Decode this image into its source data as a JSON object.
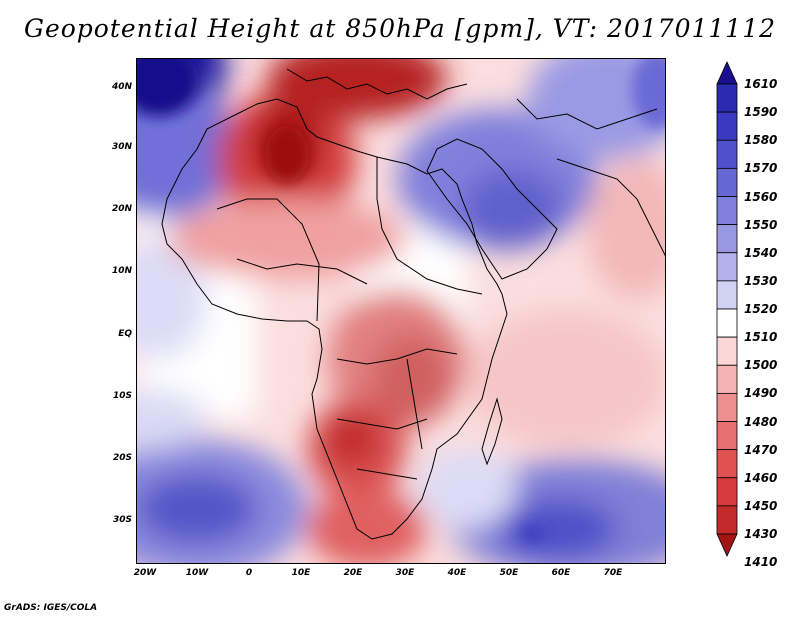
{
  "title": "Geopotential Height at 850hPa [gpm], VT: 2017011112",
  "credit": "GrADS: IGES/COLA",
  "lat_labels": [
    "40N",
    "30N",
    "20N",
    "10N",
    "EQ",
    "10S",
    "20S",
    "30S"
  ],
  "lon_labels": [
    "20W",
    "10W",
    "0",
    "10E",
    "20E",
    "30E",
    "40E",
    "50E",
    "60E",
    "70E"
  ],
  "colorbar": {
    "levels": [
      "1610",
      "1590",
      "1580",
      "1570",
      "1560",
      "1550",
      "1540",
      "1530",
      "1520",
      "1510",
      "1500",
      "1490",
      "1480",
      "1470",
      "1460",
      "1450",
      "1430",
      "1410"
    ],
    "colors": [
      "#1a0f8c",
      "#2b2bb0",
      "#3a3ac0",
      "#5050cc",
      "#6666d4",
      "#7f7fdc",
      "#9999e3",
      "#b3b3eb",
      "#d2d2f4",
      "#ffffff",
      "#fbd7d7",
      "#f5b3b3",
      "#ee8f8f",
      "#e66f6f",
      "#de5252",
      "#d63a3a",
      "#c22a2a",
      "#a31414"
    ]
  }
}
